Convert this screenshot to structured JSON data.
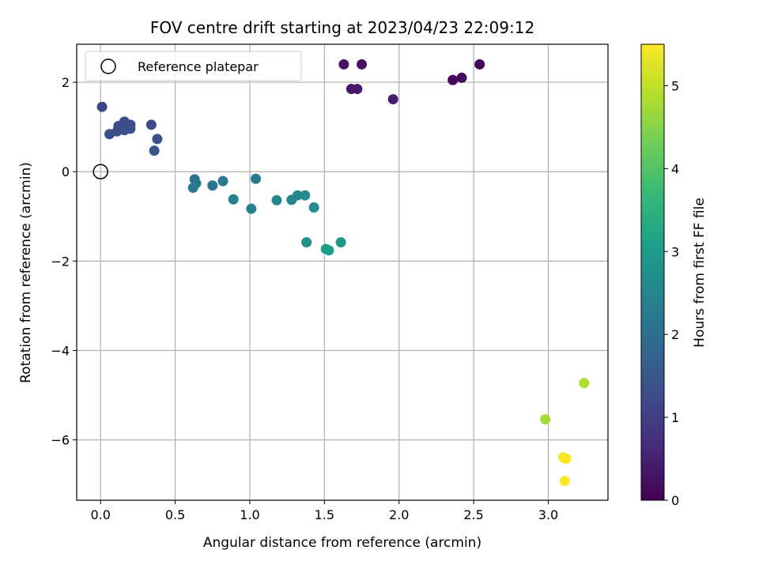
{
  "chart_data": {
    "type": "scatter",
    "title": "FOV centre drift starting at 2023/04/23 22:09:12",
    "xlabel": "Angular distance from reference (arcmin)",
    "ylabel": "Rotation from reference (arcmin)",
    "xlim": [
      -0.16,
      3.4
    ],
    "ylim": [
      -7.35,
      2.85
    ],
    "xticks": [
      0.0,
      0.5,
      1.0,
      1.5,
      2.0,
      2.5,
      3.0
    ],
    "xtick_labels": [
      "0.0",
      "0.5",
      "1.0",
      "1.5",
      "2.0",
      "2.5",
      "3.0"
    ],
    "yticks": [
      2,
      0,
      -2,
      -4,
      -6
    ],
    "ytick_labels": [
      "2",
      "0",
      "−2",
      "−4",
      "−6"
    ],
    "grid": true,
    "legend": {
      "placement": "upper-left",
      "entries": [
        "Reference platepar"
      ]
    },
    "reference_point": {
      "x": 0.0,
      "y": 0.0
    },
    "colorbar": {
      "label": "Hours from first FF file",
      "range": [
        0,
        5.5
      ],
      "ticks": [
        0,
        1,
        2,
        3,
        4,
        5
      ],
      "tick_labels": [
        "0",
        "1",
        "2",
        "3",
        "4",
        "5"
      ],
      "colormap": "viridis"
    },
    "points": [
      {
        "x": 2.54,
        "y": 2.4,
        "hours": 0.05
      },
      {
        "x": 2.36,
        "y": 2.05,
        "hours": 0.1
      },
      {
        "x": 2.42,
        "y": 2.1,
        "hours": 0.15
      },
      {
        "x": 1.63,
        "y": 2.4,
        "hours": 0.25
      },
      {
        "x": 1.75,
        "y": 2.4,
        "hours": 0.28
      },
      {
        "x": 1.68,
        "y": 1.85,
        "hours": 0.35
      },
      {
        "x": 1.72,
        "y": 1.85,
        "hours": 0.38
      },
      {
        "x": 1.96,
        "y": 1.62,
        "hours": 0.45
      },
      {
        "x": 0.01,
        "y": 1.45,
        "hours": 1.15
      },
      {
        "x": 0.34,
        "y": 1.05,
        "hours": 1.2
      },
      {
        "x": 0.16,
        "y": 1.12,
        "hours": 1.25
      },
      {
        "x": 0.2,
        "y": 1.05,
        "hours": 1.25
      },
      {
        "x": 0.12,
        "y": 1.02,
        "hours": 1.28
      },
      {
        "x": 0.06,
        "y": 0.84,
        "hours": 1.3
      },
      {
        "x": 0.11,
        "y": 0.9,
        "hours": 1.32
      },
      {
        "x": 0.16,
        "y": 0.93,
        "hours": 1.35
      },
      {
        "x": 0.2,
        "y": 0.96,
        "hours": 1.38
      },
      {
        "x": 0.38,
        "y": 0.73,
        "hours": 1.4
      },
      {
        "x": 0.36,
        "y": 0.47,
        "hours": 1.45
      },
      {
        "x": 0.63,
        "y": -0.17,
        "hours": 2.1
      },
      {
        "x": 0.64,
        "y": -0.26,
        "hours": 2.15
      },
      {
        "x": 0.62,
        "y": -0.36,
        "hours": 2.18
      },
      {
        "x": 0.75,
        "y": -0.31,
        "hours": 2.2
      },
      {
        "x": 0.82,
        "y": -0.21,
        "hours": 2.25
      },
      {
        "x": 1.04,
        "y": -0.16,
        "hours": 2.3
      },
      {
        "x": 0.89,
        "y": -0.62,
        "hours": 2.35
      },
      {
        "x": 1.01,
        "y": -0.83,
        "hours": 2.4
      },
      {
        "x": 1.18,
        "y": -0.64,
        "hours": 2.5
      },
      {
        "x": 1.28,
        "y": -0.63,
        "hours": 2.55
      },
      {
        "x": 1.32,
        "y": -0.53,
        "hours": 2.6
      },
      {
        "x": 1.37,
        "y": -0.53,
        "hours": 2.62
      },
      {
        "x": 1.43,
        "y": -0.8,
        "hours": 2.65
      },
      {
        "x": 1.38,
        "y": -1.58,
        "hours": 2.7
      },
      {
        "x": 1.61,
        "y": -1.58,
        "hours": 2.9
      },
      {
        "x": 1.51,
        "y": -1.73,
        "hours": 3.0
      },
      {
        "x": 1.53,
        "y": -1.76,
        "hours": 3.05
      },
      {
        "x": 2.98,
        "y": -5.54,
        "hours": 4.75
      },
      {
        "x": 3.24,
        "y": -4.73,
        "hours": 4.85
      },
      {
        "x": 3.1,
        "y": -6.39,
        "hours": 5.45
      },
      {
        "x": 3.12,
        "y": -6.42,
        "hours": 5.48
      },
      {
        "x": 3.11,
        "y": -6.92,
        "hours": 5.5
      }
    ]
  }
}
